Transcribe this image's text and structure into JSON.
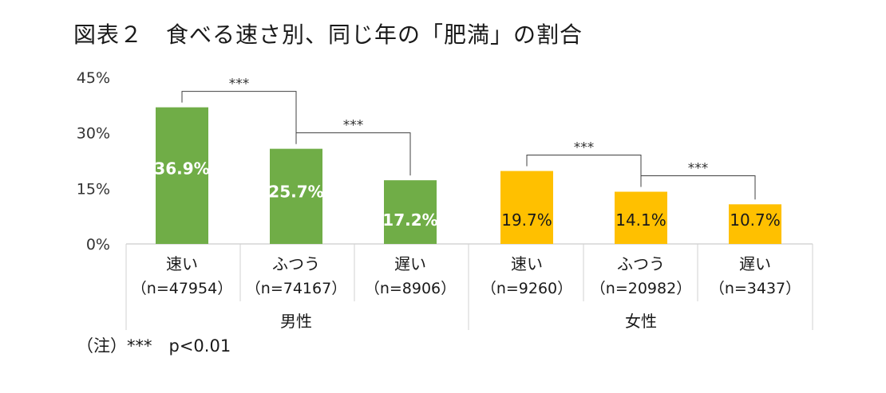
{
  "title": "図表２　食べる速さ別、同じ年の「肥満」の割合",
  "footnote": "（注）***　p<0.01",
  "chart_data": {
    "type": "bar",
    "ylim": [
      0,
      45
    ],
    "yticks": [
      "0%",
      "15%",
      "30%",
      "45%"
    ],
    "ytick_values": [
      0,
      15,
      30,
      45
    ],
    "grid": false,
    "groups": [
      {
        "label": "男性",
        "color": "#70ad47",
        "bars": [
          {
            "label": "速い",
            "n": "（n=47954）",
            "value": 36.9,
            "value_label": "36.9%"
          },
          {
            "label": "ふつう",
            "n": "（n=74167）",
            "value": 25.7,
            "value_label": "25.7%"
          },
          {
            "label": "遅い",
            "n": "（n=8906）",
            "value": 17.2,
            "value_label": "17.2%"
          }
        ],
        "significance": [
          {
            "from": 0,
            "to": 1,
            "label": "***"
          },
          {
            "from": 1,
            "to": 2,
            "label": "***"
          }
        ]
      },
      {
        "label": "女性",
        "color": "#ffc000",
        "bars": [
          {
            "label": "速い",
            "n": "（n=9260）",
            "value": 19.7,
            "value_label": "19.7%"
          },
          {
            "label": "ふつう",
            "n": "（n=20982）",
            "value": 14.1,
            "value_label": "14.1%"
          },
          {
            "label": "遅い",
            "n": "（n=3437）",
            "value": 10.7,
            "value_label": "10.7%"
          }
        ],
        "significance": [
          {
            "from": 0,
            "to": 1,
            "label": "***"
          },
          {
            "from": 1,
            "to": 2,
            "label": "***"
          }
        ]
      }
    ]
  }
}
